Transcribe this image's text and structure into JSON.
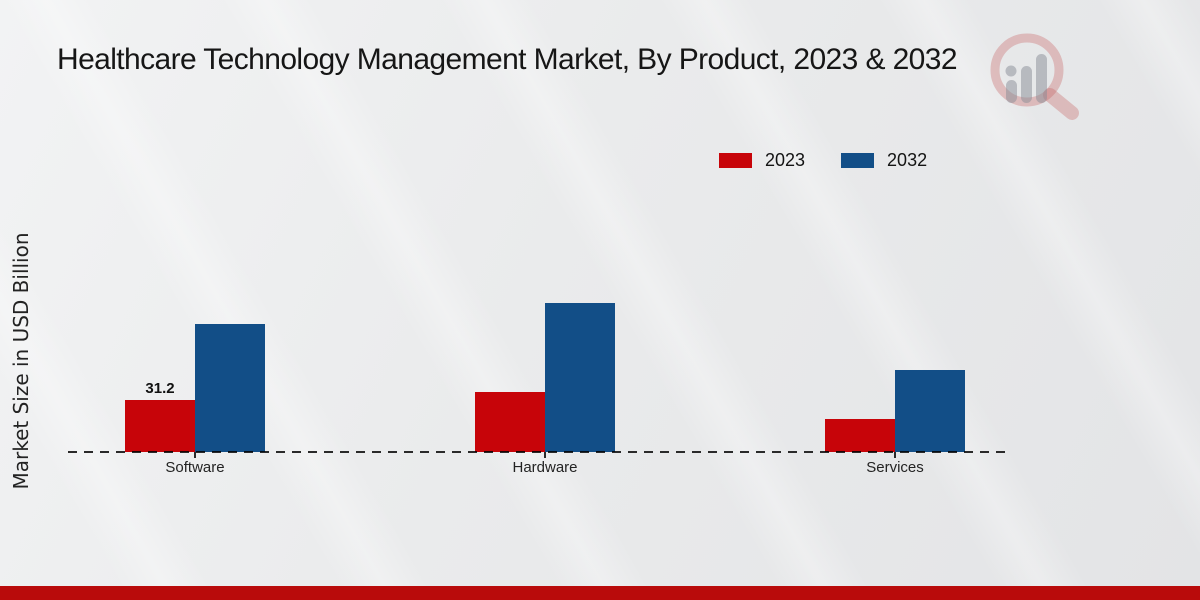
{
  "page": {
    "title": "Healthcare Technology Management Market, By Product, 2023 & 2032",
    "y_axis_label": "Market Size in USD Billion"
  },
  "legend": {
    "items": [
      {
        "label": "2023",
        "color": "#c70409"
      },
      {
        "label": "2032",
        "color": "#124e87"
      }
    ]
  },
  "chart_data": {
    "type": "bar",
    "title": "Healthcare Technology Management Market, By Product, 2023 & 2032",
    "xlabel": "",
    "ylabel": "Market Size in USD Billion",
    "categories": [
      "Software",
      "Hardware",
      "Services"
    ],
    "series": [
      {
        "name": "2023",
        "color": "#c70409",
        "values": [
          31.2,
          36.0,
          19.8
        ]
      },
      {
        "name": "2032",
        "color": "#124e87",
        "values": [
          76.8,
          89.4,
          49.2
        ]
      }
    ],
    "data_labels": [
      {
        "category": "Software",
        "series": "2023",
        "text": "31.2"
      }
    ],
    "ylim": [
      0,
      95
    ],
    "grid": false,
    "legend_position": "top-right",
    "baseline_style": "dashed"
  },
  "colors": {
    "background_top": "#f2f3f4",
    "background_bottom": "#e3e4e6",
    "footer_bar": "#b90b0b",
    "baseline": "#2a2a2a",
    "title_text": "#161616",
    "label_text": "#232323"
  },
  "watermark": {
    "name": "mrfr-magnifier-logo",
    "ring_color": "#c5595b",
    "bars_color": "#878c96"
  }
}
